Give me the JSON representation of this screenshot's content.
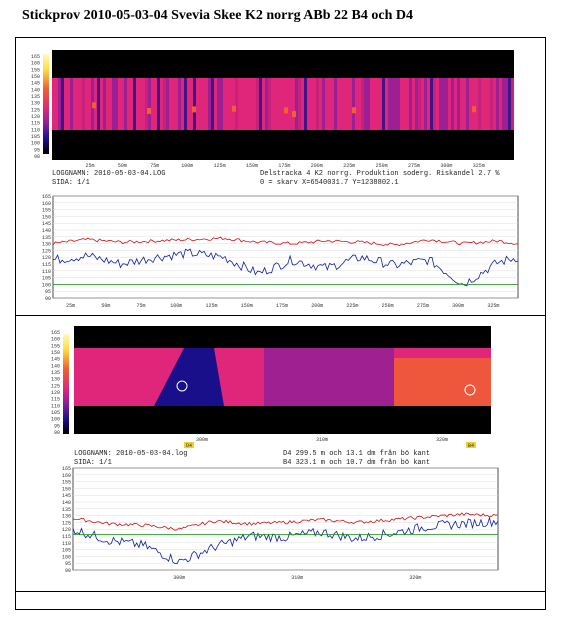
{
  "title": "Stickprov 2010-05-03-04 Svevia Skee K2 norrg ABb 22 B4 och D4",
  "colors": {
    "thermal_bg": "#000000",
    "thermal_low": "#1a0f8a",
    "thermal_mid": "#8a1f9a",
    "thermal_main": "#e0267a",
    "thermal_hot": "#f06030",
    "line_red": "#d01010",
    "line_blue": "#1020a0",
    "line_green": "#109010"
  },
  "scale_labels": [
    "165",
    "160",
    "155",
    "150",
    "145",
    "140",
    "135",
    "130",
    "125",
    "120",
    "115",
    "110",
    "105",
    "100",
    "95",
    "90"
  ],
  "panel1": {
    "loggname": "LOGGNAMN: 2010-05-03-04.LOG",
    "sida": "SIDA: 1/1",
    "info1": "Delstracka 4 K2 norrg. Produktion soderg. Riskandel 2.7 %",
    "info2": "0 = skarv  X=6540031.7  Y=1238802.1",
    "axis_ticks": [
      "25m",
      "50m",
      "75m",
      "100m",
      "125m",
      "150m",
      "175m",
      "200m",
      "225m",
      "250m",
      "275m",
      "300m",
      "325m"
    ]
  },
  "panel2": {
    "loggname": "LOGGNAMN: 2010-05-03-04.log",
    "sida": "SIDA: 1/1",
    "info1": "D4 299.5 m och 13.1 dm från bö kant",
    "info2": "B4 323.1 m och 10.7 dm från bö kant",
    "axis_ticks": [
      "300m",
      "310m",
      "320m"
    ],
    "marker_d4": "D4",
    "marker_b4": "B4"
  },
  "chart_data": [
    {
      "type": "line",
      "x": [
        0,
        25,
        50,
        75,
        100,
        125,
        150,
        175,
        200,
        225,
        250,
        275,
        300,
        325,
        340
      ],
      "series": [
        {
          "values": [
            130,
            133,
            131,
            132,
            133,
            134,
            131,
            130,
            132,
            131,
            129,
            133,
            130,
            132,
            130
          ]
        },
        {
          "values": [
            118,
            121,
            115,
            120,
            123,
            120,
            108,
            118,
            112,
            120,
            114,
            118,
            100,
            116,
            120
          ]
        },
        {
          "values": [
            100,
            100,
            100,
            100,
            100,
            100,
            100,
            100,
            100,
            100,
            100,
            100,
            100,
            100,
            100
          ]
        }
      ],
      "ylim": [
        90,
        165
      ],
      "xticks": [
        "25m",
        "50m",
        "75m",
        "100m",
        "125m",
        "150m",
        "175m",
        "200m",
        "225m",
        "250m",
        "275m",
        "300m",
        "325m"
      ]
    },
    {
      "type": "line",
      "x": [
        290,
        293,
        296,
        299,
        302,
        305,
        308,
        311,
        314,
        317,
        320,
        323,
        326
      ],
      "series": [
        {
          "values": [
            128,
            124,
            123,
            120,
            126,
            124,
            125,
            127,
            125,
            127,
            129,
            131,
            130
          ]
        },
        {
          "values": [
            120,
            112,
            108,
            96,
            107,
            115,
            114,
            118,
            113,
            117,
            122,
            124,
            126
          ]
        },
        {
          "values": [
            116,
            116,
            116,
            116,
            116,
            116,
            116,
            116,
            116,
            116,
            116,
            116,
            116
          ]
        }
      ],
      "ylim": [
        90,
        165
      ],
      "xticks": [
        "300m",
        "310m",
        "320m"
      ]
    }
  ]
}
